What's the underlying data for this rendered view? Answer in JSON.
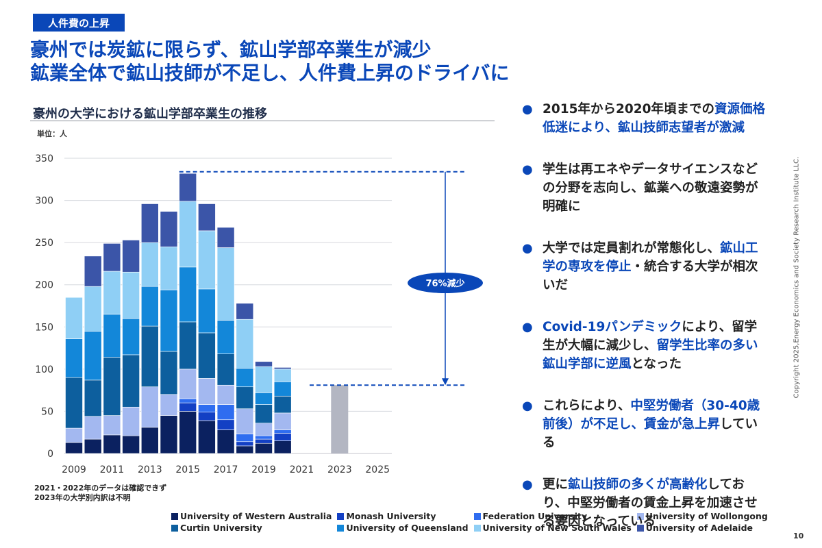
{
  "tag": "人件費の上昇",
  "headline": {
    "line1": "豪州では炭鉱に限らず、鉱山学部卒業生が減少",
    "line2": "鉱業全体で鉱山技師が不足し、人件費上昇のドライバに"
  },
  "chart_title": "豪州の大学における鉱山学部卒業生の推移",
  "unit": "単位：人",
  "note": {
    "line1": "2021・2022年のデータは確認できず",
    "line2": "2023年の大学別内訳は不明"
  },
  "chart_data": {
    "type": "bar",
    "stacked": true,
    "ylim": [
      0,
      350
    ],
    "yticks": [
      0,
      50,
      100,
      150,
      200,
      250,
      300,
      350
    ],
    "xlim": [
      2008.5,
      2025.5
    ],
    "xticks": [
      2009,
      2011,
      2013,
      2015,
      2017,
      2019,
      2021,
      2023,
      2025
    ],
    "grid": true,
    "years": [
      2009,
      2010,
      2011,
      2012,
      2013,
      2014,
      2015,
      2016,
      2017,
      2018,
      2019,
      2020
    ],
    "series": [
      {
        "name": "University of Western Australia",
        "color": "#0b2160",
        "values": [
          13,
          17,
          22,
          21,
          31,
          45,
          50,
          39,
          28,
          9,
          12,
          15
        ]
      },
      {
        "name": "Monash University",
        "color": "#1340c4",
        "values": [
          0,
          0,
          0,
          0,
          0,
          0,
          10,
          10,
          12,
          5,
          5,
          9
        ]
      },
      {
        "name": "Federation University",
        "color": "#2f6df0",
        "values": [
          0,
          0,
          0,
          0,
          0,
          0,
          5,
          9,
          18,
          9,
          4,
          4
        ]
      },
      {
        "name": "University of Wollongong",
        "color": "#a3b8f0",
        "values": [
          17,
          27,
          23,
          34,
          48,
          25,
          35,
          31,
          23,
          30,
          15,
          20
        ]
      },
      {
        "name": "Curtin University",
        "color": "#0d5f9e",
        "values": [
          60,
          43,
          69,
          62,
          72,
          51,
          56,
          54,
          37,
          26,
          22,
          20
        ]
      },
      {
        "name": "University of Queensland",
        "color": "#1387d9",
        "values": [
          46,
          58,
          51,
          43,
          47,
          73,
          65,
          52,
          40,
          22,
          14,
          17
        ]
      },
      {
        "name": "University of New South Wales",
        "color": "#8fcff5",
        "values": [
          49,
          53,
          51,
          55,
          52,
          51,
          78,
          69,
          86,
          58,
          31,
          15
        ]
      },
      {
        "name": "University of Adelaide",
        "color": "#3b55a8",
        "values": [
          0,
          36,
          33,
          38,
          46,
          42,
          33,
          32,
          24,
          19,
          6,
          2
        ]
      }
    ],
    "total_only": [
      {
        "year": 2023,
        "value": 81,
        "color": "#b3b6c2"
      }
    ],
    "reference_lines": {
      "upper": 334,
      "lower": 81
    },
    "annotation": "76%減少"
  },
  "legend": [
    {
      "label": "University of Western Australia",
      "color": "#0b2160"
    },
    {
      "label": "Monash University",
      "color": "#1340c4"
    },
    {
      "label": "Federation University",
      "color": "#2f6df0"
    },
    {
      "label": "University of Wollongong",
      "color": "#a3b8f0"
    },
    {
      "label": "Curtin University",
      "color": "#0d5f9e"
    },
    {
      "label": "University of Queensland",
      "color": "#1387d9"
    },
    {
      "label": "University of New South Wales",
      "color": "#8fcff5"
    },
    {
      "label": "University of Adelaide",
      "color": "#3b55a8"
    }
  ],
  "bullets": [
    [
      {
        "t": "2015年から2020年頃までの"
      },
      {
        "t": "資源価格低迷により、鉱山技師志望者が激減",
        "hl": true
      }
    ],
    [
      {
        "t": "学生は再エネやデータサイエンスなどの分野を志向し、鉱業への敬遠姿勢が明確に"
      }
    ],
    [
      {
        "t": "大学では定員割れが常態化し、"
      },
      {
        "t": "鉱山工学の専攻を停止",
        "hl": true
      },
      {
        "t": "・統合する大学が相次いだ"
      }
    ],
    [
      {
        "t": "Covid-19パンデミック",
        "hl": true
      },
      {
        "t": "により、留学生が大幅に減少し、"
      },
      {
        "t": "留学生比率の多い鉱山学部に逆風",
        "hl": true
      },
      {
        "t": "となった"
      }
    ],
    [
      {
        "t": "これらにより、"
      },
      {
        "t": "中堅労働者（30-40歳前後）が不足し、賃金が急上昇",
        "hl": true
      },
      {
        "t": "している"
      }
    ],
    [
      {
        "t": "更に"
      },
      {
        "t": "鉱山技師の多くが高齢化",
        "hl": true
      },
      {
        "t": "しており、中堅労働者の賃金上昇を加速させる要因となっている"
      }
    ]
  ],
  "copyright": "Copyright 2025,Energy Economics and Society Research Institute LLC.",
  "page_number": "10"
}
